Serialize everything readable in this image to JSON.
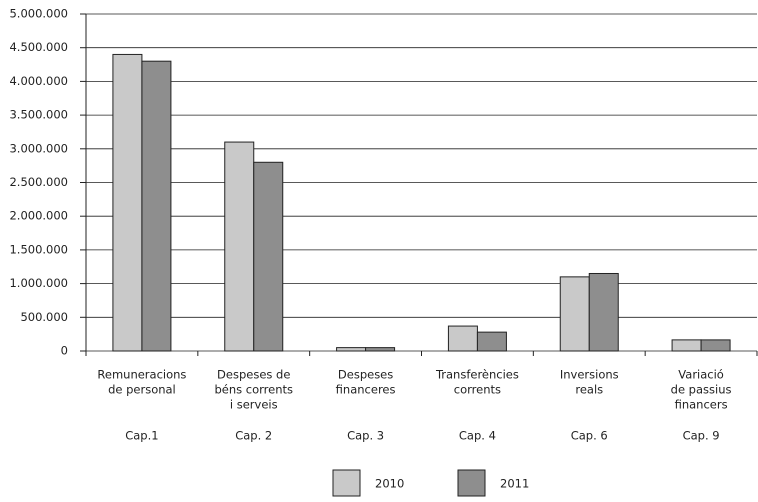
{
  "chart_data": {
    "type": "bar",
    "categories": [
      [
        "Remuneracions",
        "de personal"
      ],
      [
        "Despeses de",
        "béns corrents",
        "i serveis"
      ],
      [
        "Despeses",
        "financeres"
      ],
      [
        "Transferències",
        "corrents"
      ],
      [
        "Inversions",
        "reals"
      ],
      [
        "Variació",
        "de passius",
        "financers"
      ]
    ],
    "chapters": [
      "Cap.1",
      "Cap. 2",
      "Cap. 3",
      "Cap. 4",
      "Cap. 6",
      "Cap. 9"
    ],
    "series": [
      {
        "name": "2010",
        "color": "#c9c9c9",
        "values": [
          4400000,
          3100000,
          50000,
          370000,
          1100000,
          165000
        ]
      },
      {
        "name": "2011",
        "color": "#8e8e8e",
        "values": [
          4300000,
          2800000,
          50000,
          280000,
          1150000,
          165000
        ]
      }
    ],
    "ylim": [
      0,
      5000000
    ],
    "yticks": [
      0,
      {
        "value": 500000,
        "label": "500.000"
      },
      {
        "value": 1000000,
        "label": "1.000.000"
      },
      {
        "value": 1500000,
        "label": "1.500.000"
      },
      {
        "value": 2000000,
        "label": "2.000.000"
      },
      {
        "value": 2500000,
        "label": "2.500.000"
      },
      {
        "value": 3000000,
        "label": "3.000.000"
      },
      {
        "value": 3500000,
        "label": "3.500.000"
      },
      {
        "value": 4000000,
        "label": "4.000.000"
      },
      {
        "value": 4500000,
        "label": "4.500.000"
      },
      {
        "value": 5000000,
        "label": "5.000.000"
      }
    ],
    "grid": true
  }
}
